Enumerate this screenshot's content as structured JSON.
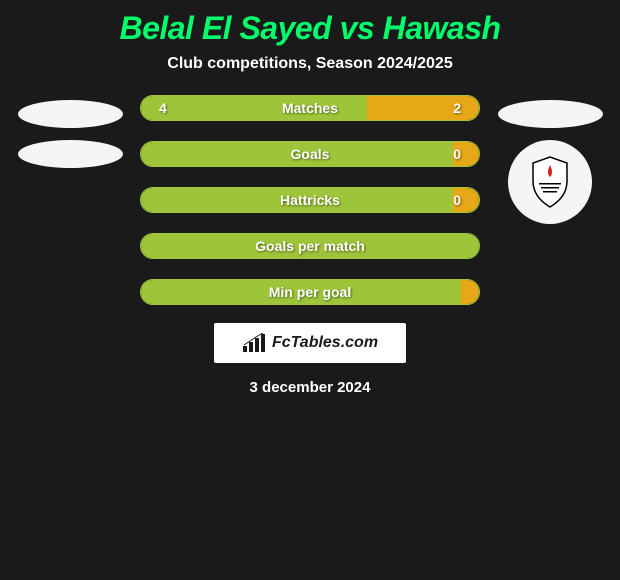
{
  "title": "Belal El Sayed vs Hawash",
  "subtitle": "Club competitions, Season 2024/2025",
  "colors": {
    "background": "#1a1a1a",
    "title": "#00ff6a",
    "text": "#ffffff",
    "left_bar": "#9ec53a",
    "right_bar": "#e6a817",
    "border": "#9ec53a",
    "placeholder": "#f5f5f5"
  },
  "stats": [
    {
      "label": "Matches",
      "left_value": "4",
      "right_value": "2",
      "left_pct": 67,
      "right_pct": 33
    },
    {
      "label": "Goals",
      "left_value": "",
      "right_value": "0",
      "left_pct": 94,
      "right_pct": 6
    },
    {
      "label": "Hattricks",
      "left_value": "",
      "right_value": "0",
      "left_pct": 94,
      "right_pct": 6
    },
    {
      "label": "Goals per match",
      "left_value": "",
      "right_value": "",
      "left_pct": 100,
      "right_pct": 0
    },
    {
      "label": "Min per goal",
      "left_value": "",
      "right_value": "",
      "left_pct": 98,
      "right_pct": 2
    }
  ],
  "branding": "FcTables.com",
  "date": "3 december 2024",
  "bar_style": {
    "height": 26,
    "border_radius": 13,
    "gap": 20,
    "label_fontsize": 14,
    "value_fontsize": 14
  },
  "title_fontsize": 32,
  "subtitle_fontsize": 16
}
